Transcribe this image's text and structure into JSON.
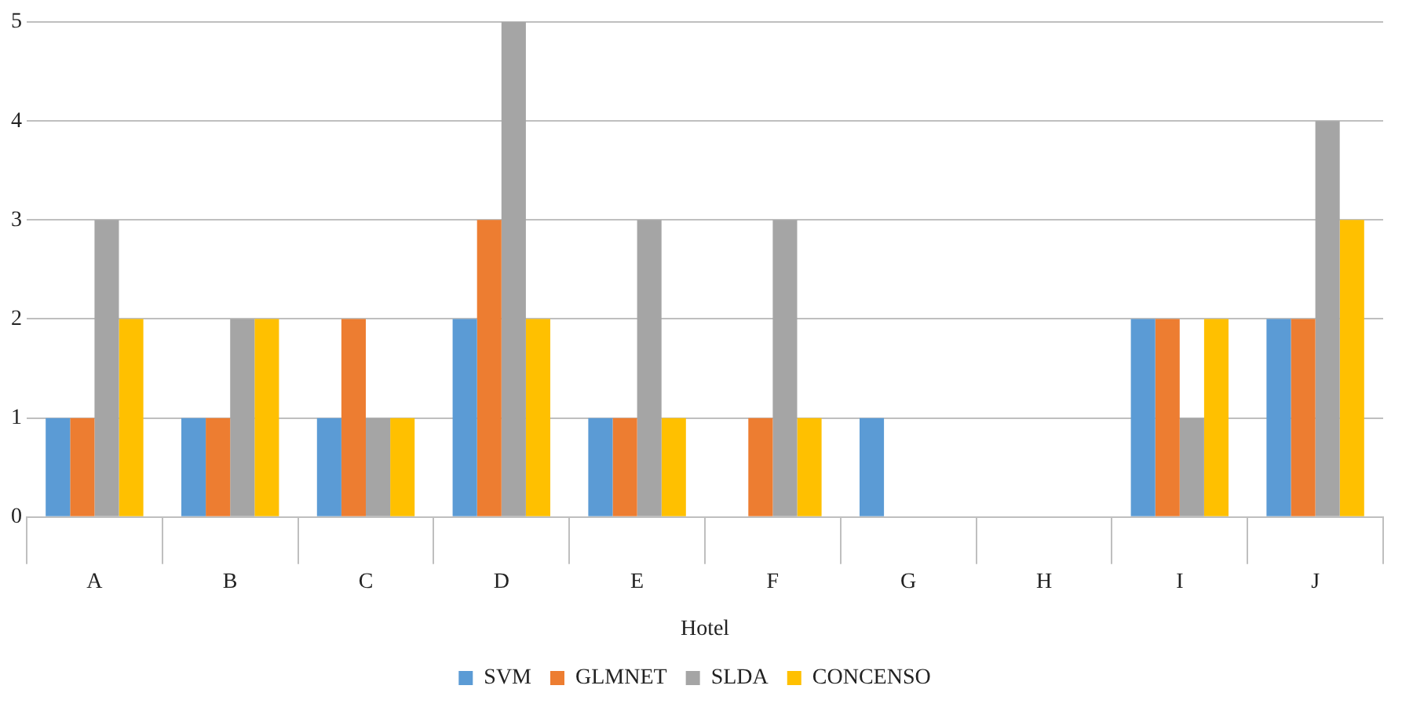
{
  "chart_data": {
    "type": "bar",
    "xlabel": "Hotel",
    "categories": [
      "A",
      "B",
      "C",
      "D",
      "E",
      "F",
      "G",
      "H",
      "I",
      "J"
    ],
    "series": [
      {
        "name": "SVM",
        "color": "#5b9bd5",
        "values": [
          1,
          1,
          1,
          2,
          1,
          0,
          1,
          0,
          2,
          2
        ]
      },
      {
        "name": "GLMNET",
        "color": "#ed7d31",
        "values": [
          1,
          1,
          2,
          3,
          1,
          1,
          0,
          0,
          2,
          2
        ]
      },
      {
        "name": "SLDA",
        "color": "#a5a5a5",
        "values": [
          3,
          2,
          1,
          5,
          3,
          3,
          0,
          0,
          1,
          4
        ]
      },
      {
        "name": "CONCENSO",
        "color": "#ffc000",
        "values": [
          2,
          2,
          1,
          2,
          1,
          1,
          0,
          0,
          2,
          3
        ]
      }
    ],
    "ylim": [
      0,
      5
    ],
    "yticks": [
      0,
      1,
      2,
      3,
      4,
      5
    ],
    "grid": "y",
    "legend": "bottom"
  }
}
